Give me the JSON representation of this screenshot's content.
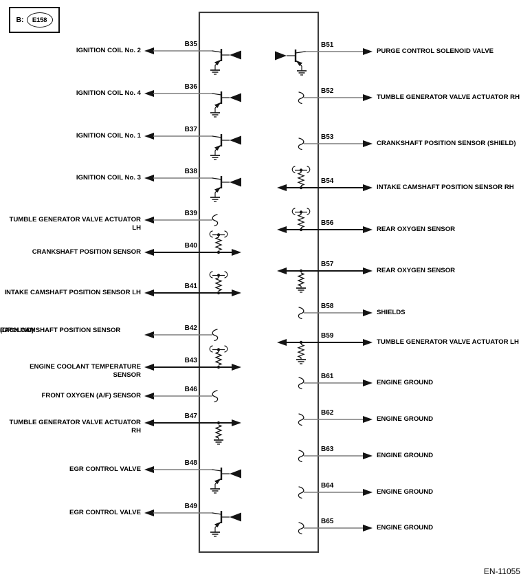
{
  "connector_box": {
    "prefix": "B:",
    "id": "E158"
  },
  "footer": {
    "doc_code": "EN-11055"
  },
  "colors": {
    "background": "#ffffff",
    "wire": "#7d7d7d",
    "ink": "#141414",
    "wall": "#3c3c3c"
  },
  "left_rows": [
    {
      "pin": "B35",
      "label": "IGNITION COIL No. 2",
      "symbol": "transistor",
      "bidirectional": false
    },
    {
      "pin": "B36",
      "label": "IGNITION COIL No. 4",
      "symbol": "transistor",
      "bidirectional": false
    },
    {
      "pin": "B37",
      "label": "IGNITION COIL No. 1",
      "symbol": "transistor",
      "bidirectional": false
    },
    {
      "pin": "B38",
      "label": "IGNITION COIL No. 3",
      "symbol": "transistor",
      "bidirectional": false
    },
    {
      "pin": "B39",
      "label": "TUMBLE GENERATOR VALVE ACTUATOR LH",
      "symbol": "pigtail",
      "bidirectional": false
    },
    {
      "pin": "B40",
      "label": "CRANKSHAFT POSITION SENSOR",
      "symbol": "resistor_pullup",
      "bidirectional": true
    },
    {
      "pin": "B41",
      "label": "INTAKE CAMSHAFT POSITION SENSOR LH",
      "symbol": "resistor_pullup",
      "bidirectional": true
    },
    {
      "pin": "B42",
      "label": "EACH CAMSHAFT POSITION SENSOR",
      "label2": "(GROUND)",
      "symbol": "pigtail",
      "bidirectional": false
    },
    {
      "pin": "B43",
      "label": "ENGINE COOLANT TEMPERATURE SENSOR",
      "symbol": "resistor_pullup",
      "bidirectional": true
    },
    {
      "pin": "B46",
      "label": "FRONT OXYGEN (A/F) SENSOR",
      "symbol": "pigtail",
      "bidirectional": false
    },
    {
      "pin": "B47",
      "label": "TUMBLE GENERATOR VALVE ACTUATOR RH",
      "symbol": "resistor_ground",
      "bidirectional": true
    },
    {
      "pin": "B48",
      "label": "EGR CONTROL VALVE",
      "symbol": "transistor",
      "bidirectional": false
    },
    {
      "pin": "B49",
      "label": "EGR CONTROL VALVE",
      "symbol": "transistor",
      "bidirectional": false
    }
  ],
  "right_rows": [
    {
      "pin": "B51",
      "label": "PURGE CONTROL SOLENOID VALVE",
      "symbol": "transistor",
      "bidirectional": false
    },
    {
      "pin": "B52",
      "label": "TUMBLE GENERATOR VALVE ACTUATOR RH",
      "symbol": "pigtail",
      "bidirectional": false
    },
    {
      "pin": "B53",
      "label": "CRANKSHAFT POSITION SENSOR (SHIELD)",
      "symbol": "pigtail",
      "bidirectional": false
    },
    {
      "pin": "B54",
      "label": "INTAKE CAMSHAFT POSITION SENSOR RH",
      "symbol": "resistor_pullup",
      "bidirectional": true
    },
    {
      "pin": "B56",
      "label": "REAR OXYGEN SENSOR",
      "symbol": "resistor_pullup",
      "bidirectional": true
    },
    {
      "pin": "B57",
      "label": "REAR OXYGEN SENSOR",
      "symbol": "resistor_ground",
      "bidirectional": true
    },
    {
      "pin": "B58",
      "label": "SHIELDS",
      "symbol": "pigtail",
      "bidirectional": false
    },
    {
      "pin": "B59",
      "label": "TUMBLE GENERATOR VALVE ACTUATOR LH",
      "symbol": "resistor_ground",
      "bidirectional": true
    },
    {
      "pin": "B61",
      "label": "ENGINE GROUND",
      "symbol": "pigtail",
      "bidirectional": false
    },
    {
      "pin": "B62",
      "label": "ENGINE GROUND",
      "symbol": "pigtail",
      "bidirectional": false
    },
    {
      "pin": "B63",
      "label": "ENGINE GROUND",
      "symbol": "pigtail",
      "bidirectional": false
    },
    {
      "pin": "B64",
      "label": "ENGINE GROUND",
      "symbol": "pigtail",
      "bidirectional": false
    },
    {
      "pin": "B65",
      "label": "ENGINE GROUND",
      "symbol": "pigtail",
      "bidirectional": false
    }
  ]
}
